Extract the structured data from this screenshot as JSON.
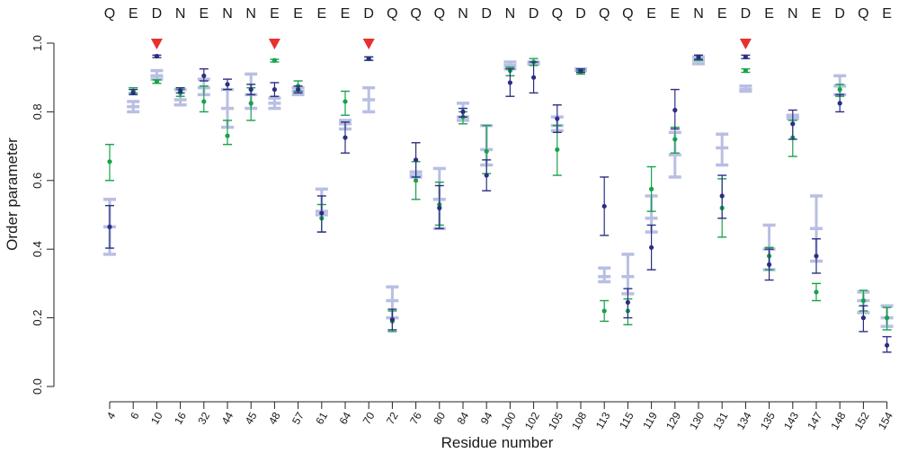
{
  "chart_data": {
    "type": "scatter",
    "xlabel": "Residue number",
    "ylabel": "Order parameter",
    "ylim": [
      0,
      1
    ],
    "yticks": [
      0.0,
      0.2,
      0.4,
      0.6,
      0.8,
      1.0
    ],
    "ytick_labels": [
      "0.0",
      "0.2",
      "0.4",
      "0.6",
      "0.8",
      "1.0"
    ],
    "categories": [
      "4",
      "6",
      "10",
      "16",
      "32",
      "44",
      "45",
      "48",
      "57",
      "61",
      "64",
      "70",
      "72",
      "76",
      "80",
      "84",
      "94",
      "100",
      "102",
      "105",
      "108",
      "113",
      "115",
      "119",
      "129",
      "130",
      "131",
      "134",
      "135",
      "143",
      "147",
      "148",
      "152",
      "154"
    ],
    "residue_letters": [
      "Q",
      "E",
      "D",
      "N",
      "E",
      "N",
      "N",
      "E",
      "E",
      "E",
      "E",
      "D",
      "Q",
      "Q",
      "Q",
      "N",
      "D",
      "N",
      "D",
      "Q",
      "D",
      "Q",
      "Q",
      "E",
      "E",
      "N",
      "E",
      "D",
      "E",
      "N",
      "E",
      "D",
      "Q",
      "E"
    ],
    "markers": [
      "10",
      "48",
      "70",
      "134"
    ],
    "colors": {
      "series1": "#2b2e83",
      "series2": "#16a24a",
      "series3": "#b8bfe2",
      "marker": "#e8312f",
      "axis": "#222222"
    },
    "series": [
      {
        "values": [
          0.465,
          0.855,
          0.962,
          0.862,
          0.905,
          0.88,
          0.865,
          0.865,
          0.865,
          0.505,
          0.725,
          0.955,
          0.195,
          0.66,
          0.52,
          0.8,
          0.615,
          0.885,
          0.9,
          0.78,
          0.92,
          0.525,
          0.245,
          0.405,
          0.805,
          0.96,
          0.555,
          0.96,
          0.355,
          0.765,
          0.38,
          0.825,
          0.2,
          0.12
        ],
        "lower": [
          0.403,
          0.85,
          0.958,
          0.855,
          0.89,
          0.865,
          0.85,
          0.845,
          0.855,
          0.45,
          0.68,
          0.95,
          0.165,
          0.61,
          0.46,
          0.785,
          0.57,
          0.845,
          0.855,
          0.74,
          0.915,
          0.44,
          0.2,
          0.34,
          0.75,
          0.953,
          0.49,
          0.955,
          0.31,
          0.72,
          0.33,
          0.8,
          0.16,
          0.1
        ],
        "upper": [
          0.527,
          0.865,
          0.965,
          0.87,
          0.925,
          0.895,
          0.88,
          0.885,
          0.875,
          0.555,
          0.77,
          0.96,
          0.225,
          0.71,
          0.585,
          0.81,
          0.66,
          0.925,
          0.945,
          0.82,
          0.925,
          0.61,
          0.285,
          0.47,
          0.865,
          0.965,
          0.615,
          0.965,
          0.4,
          0.805,
          0.43,
          0.85,
          0.235,
          0.145
        ]
      },
      {
        "values": [
          0.655,
          0.86,
          0.888,
          0.855,
          0.83,
          0.73,
          0.825,
          0.95,
          0.875,
          0.49,
          0.83,
          0.955,
          0.19,
          0.6,
          0.53,
          0.785,
          0.685,
          0.92,
          0.945,
          0.69,
          0.915,
          0.22,
          0.22,
          0.575,
          0.72,
          0.955,
          0.52,
          0.92,
          0.38,
          0.725,
          0.275,
          0.865,
          0.25,
          0.2
        ],
        "lower": [
          0.6,
          0.855,
          0.883,
          0.845,
          0.8,
          0.705,
          0.775,
          0.945,
          0.86,
          0.45,
          0.79,
          0.95,
          0.16,
          0.545,
          0.47,
          0.765,
          0.62,
          0.905,
          0.935,
          0.615,
          0.91,
          0.19,
          0.18,
          0.51,
          0.68,
          0.95,
          0.435,
          0.915,
          0.34,
          0.67,
          0.25,
          0.845,
          0.22,
          0.165
        ],
        "upper": [
          0.705,
          0.87,
          0.893,
          0.865,
          0.875,
          0.775,
          0.87,
          0.953,
          0.89,
          0.53,
          0.86,
          0.96,
          0.22,
          0.655,
          0.595,
          0.8,
          0.76,
          0.93,
          0.955,
          0.76,
          0.92,
          0.25,
          0.255,
          0.64,
          0.755,
          0.965,
          0.605,
          0.925,
          0.405,
          0.775,
          0.3,
          0.88,
          0.28,
          0.23
        ]
      },
      {
        "values": [
          0.465,
          0.815,
          0.905,
          0.835,
          0.87,
          0.81,
          0.85,
          0.825,
          0.86,
          0.51,
          0.765,
          0.835,
          0.25,
          0.61,
          0.545,
          0.785,
          0.69,
          0.935,
          0.94,
          0.76,
          0.925,
          0.32,
          0.32,
          0.49,
          0.675,
          0.95,
          0.695,
          0.865,
          0.4,
          0.785,
          0.46,
          0.875,
          0.25,
          0.2
        ],
        "lower": [
          0.385,
          0.8,
          0.895,
          0.82,
          0.85,
          0.755,
          0.81,
          0.81,
          0.85,
          0.5,
          0.75,
          0.8,
          0.2,
          0.615,
          0.46,
          0.775,
          0.645,
          0.925,
          0.94,
          0.745,
          0.92,
          0.305,
          0.27,
          0.45,
          0.61,
          0.94,
          0.645,
          0.86,
          0.34,
          0.78,
          0.365,
          0.85,
          0.215,
          0.175
        ],
        "upper": [
          0.545,
          0.83,
          0.92,
          0.865,
          0.895,
          0.865,
          0.91,
          0.84,
          0.87,
          0.575,
          0.775,
          0.87,
          0.29,
          0.625,
          0.635,
          0.825,
          0.76,
          0.945,
          0.945,
          0.785,
          0.925,
          0.345,
          0.385,
          0.555,
          0.74,
          0.96,
          0.735,
          0.875,
          0.47,
          0.79,
          0.555,
          0.905,
          0.275,
          0.235
        ]
      }
    ]
  }
}
